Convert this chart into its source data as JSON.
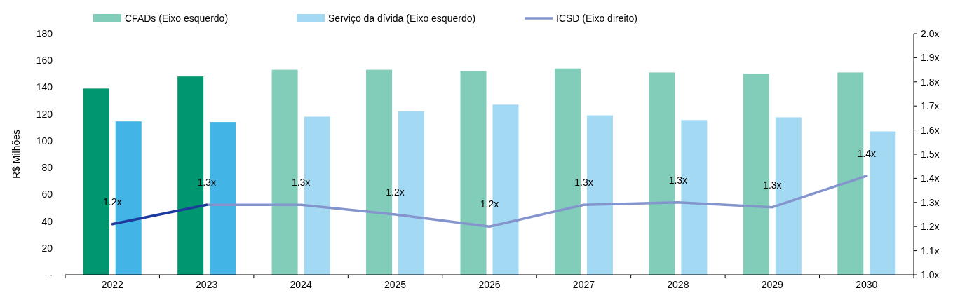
{
  "chart_data": {
    "type": "bar",
    "categories": [
      "2022",
      "2023",
      "2024",
      "2025",
      "2026",
      "2027",
      "2028",
      "2029",
      "2030"
    ],
    "ylabel": "R$ Milhões",
    "ylim": [
      0,
      180
    ],
    "yticks": [
      {
        "value": 0,
        "label": "-"
      },
      20,
      40,
      60,
      80,
      100,
      120,
      140,
      160,
      180
    ],
    "y2lim": [
      1.0,
      2.0
    ],
    "y2ticks": [
      {
        "value": 1.0,
        "label": "1.0x"
      },
      {
        "value": 1.1,
        "label": "1.1x"
      },
      {
        "value": 1.2,
        "label": "1.2x"
      },
      {
        "value": 1.3,
        "label": "1.3x"
      },
      {
        "value": 1.4,
        "label": "1.4x"
      },
      {
        "value": 1.5,
        "label": "1.5x"
      },
      {
        "value": 1.6,
        "label": "1.6x"
      },
      {
        "value": 1.7,
        "label": "1.7x"
      },
      {
        "value": 1.8,
        "label": "1.8x"
      },
      {
        "value": 1.9,
        "label": "1.9x"
      },
      {
        "value": 2.0,
        "label": "2.0x"
      }
    ],
    "legend": "top",
    "grid": false,
    "marker": "none",
    "line_style": "solid",
    "series": [
      {
        "name": "CFADs (Eixo esquerdo)",
        "color": "#82cdb9",
        "colors": [
          "#00966f",
          "#00966f",
          "#82cdb9",
          "#82cdb9",
          "#82cdb9",
          "#82cdb9",
          "#82cdb9",
          "#82cdb9",
          "#82cdb9"
        ],
        "values": [
          139,
          148,
          153,
          153,
          152,
          154,
          151,
          150,
          151
        ]
      },
      {
        "name": "Serviço da dívida (Eixo esquerdo)",
        "color": "#a3d9f2",
        "colors": [
          "#42b4e6",
          "#42b4e6",
          "#a3d9f2",
          "#a3d9f2",
          "#a3d9f2",
          "#a3d9f2",
          "#a3d9f2",
          "#a3d9f2",
          "#a3d9f2"
        ],
        "values": [
          114.5,
          114,
          118,
          122,
          127,
          119,
          115.5,
          117.5,
          107
        ]
      },
      {
        "name": "ICSD (Eixo direito)",
        "type": "line",
        "axis": "y2",
        "color": "#8494cc",
        "values": [
          null,
          1.29,
          1.29,
          1.25,
          1.2,
          1.29,
          1.3,
          1.28,
          1.41
        ],
        "value_labels": [
          null,
          "1.3x",
          "1.3x",
          "1.2x",
          "1.2x",
          "1.3x",
          "1.3x",
          "1.3x",
          "1.4x"
        ]
      },
      {
        "type": "line",
        "axis": "y2",
        "color": "#1f3a9e",
        "values": [
          1.21,
          1.29,
          null,
          null,
          null,
          null,
          null,
          null,
          null
        ],
        "value_labels": [
          "1.2x",
          null,
          null,
          null,
          null,
          null,
          null,
          null,
          null
        ]
      }
    ]
  }
}
